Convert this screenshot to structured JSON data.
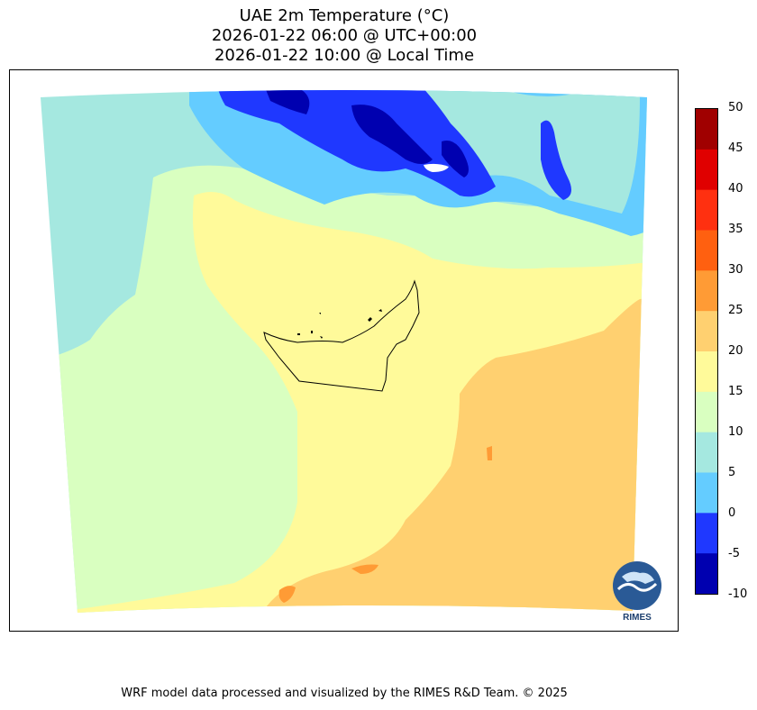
{
  "title": {
    "line1": "UAE 2m Temperature (°C)",
    "line2": "2026-01-22 06:00 @ UTC+00:00",
    "line3": "2026-01-22 10:00 @ Local Time"
  },
  "colorbar": {
    "levels": [
      "50",
      "45",
      "40",
      "35",
      "30",
      "25",
      "20",
      "15",
      "10",
      "5",
      "0",
      "-5",
      "-10"
    ],
    "colors": [
      "#a00000",
      "#e00000",
      "#ff3010",
      "#ff6010",
      "#ff9b35",
      "#ffd070",
      "#fffa9a",
      "#d9ffc0",
      "#a5e8e0",
      "#64ccff",
      "#1f38ff",
      "#0000b0"
    ]
  },
  "colors": {
    "cold_deep": "#0000b0",
    "cold": "#1f38ff",
    "cool": "#64ccff",
    "mild": "#a5e8e0",
    "lightgreen": "#d9ffc0",
    "yellow": "#fffa9a",
    "orange_light": "#ffd070",
    "orange": "#ff9b35"
  },
  "logo": {
    "text": "RIMES"
  },
  "footer": "WRF model data processed and visualized by the RIMES R&D Team. © 2025"
}
